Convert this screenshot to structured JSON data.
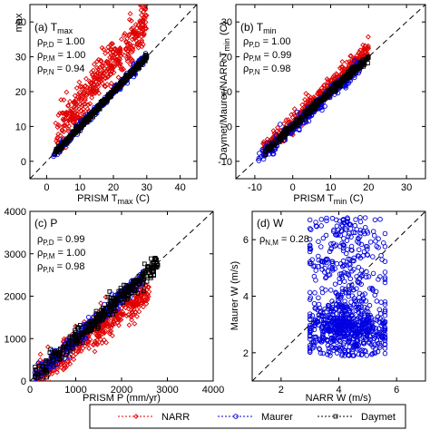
{
  "legend": {
    "items": [
      {
        "label": "NARR",
        "color": "#e00000",
        "marker": "diamond"
      },
      {
        "label": "Maurer",
        "color": "#0000e0",
        "marker": "circle"
      },
      {
        "label": "Daymet",
        "color": "#000000",
        "marker": "square"
      }
    ]
  },
  "chart_data": [
    {
      "type": "scatter",
      "panel_label": "(a) T",
      "panel_sub": "max",
      "xlabel": "PRISM T",
      "xlabel_sub": "max",
      "xlabel_unit": " (C)",
      "ylabel_visible": "max",
      "xlim": [
        -5,
        45
      ],
      "ylim": [
        -5,
        45
      ],
      "xticks": [
        0,
        10,
        20,
        30,
        40
      ],
      "yticks": [
        0,
        10,
        20,
        30,
        40
      ],
      "rho": [
        {
          "label": "ρ",
          "sub": "P,D",
          "value": " = 1.00"
        },
        {
          "label": "ρ",
          "sub": "P,M",
          "value": " = 1.00"
        },
        {
          "label": "ρ",
          "sub": "P,N",
          "value": " = 0.94"
        }
      ],
      "series": [
        {
          "name": "NARR",
          "pattern": "cloud",
          "x_range": [
            2,
            30
          ],
          "slope": 1.2,
          "intercept": 4.5,
          "spread": 3.0
        },
        {
          "name": "Maurer",
          "pattern": "line",
          "x_range": [
            2,
            30
          ],
          "slope": 1.0,
          "intercept": 0.0,
          "spread": 0.6
        },
        {
          "name": "Daymet",
          "pattern": "line",
          "x_range": [
            2,
            30
          ],
          "slope": 1.0,
          "intercept": 0.0,
          "spread": 0.4
        }
      ]
    },
    {
      "type": "scatter",
      "panel_label": "(b) T",
      "panel_sub": "min",
      "xlabel": "PRISM T",
      "xlabel_sub": "min",
      "xlabel_unit": " (C)",
      "ylabel": "Daymet/Maurer/NARR T",
      "ylabel_sub": "min",
      "ylabel_unit": " (C)",
      "xlim": [
        -15,
        35
      ],
      "ylim": [
        -15,
        35
      ],
      "xticks": [
        -10,
        0,
        10,
        20,
        30
      ],
      "yticks": [
        -10,
        0,
        10,
        20,
        30
      ],
      "rho": [
        {
          "label": "ρ",
          "sub": "P,D",
          "value": " = 1.00"
        },
        {
          "label": "ρ",
          "sub": "P,M",
          "value": " = 0.99"
        },
        {
          "label": "ρ",
          "sub": "P,N",
          "value": " = 0.98"
        }
      ],
      "series": [
        {
          "name": "NARR",
          "pattern": "cloud",
          "x_range": [
            -8,
            20
          ],
          "slope": 1.05,
          "intercept": 1.0,
          "spread": 1.3
        },
        {
          "name": "Maurer",
          "pattern": "line",
          "x_range": [
            -9,
            18
          ],
          "slope": 1.0,
          "intercept": -0.3,
          "spread": 1.0
        },
        {
          "name": "Daymet",
          "pattern": "line",
          "x_range": [
            -8,
            20
          ],
          "slope": 1.0,
          "intercept": 0.0,
          "spread": 0.5
        }
      ]
    },
    {
      "type": "scatter",
      "panel_label": "(c) P",
      "xlabel": "PRISM P (mm/yr)",
      "ylabel": "",
      "xlim": [
        0,
        4000
      ],
      "ylim": [
        0,
        4000
      ],
      "xticks": [
        0,
        1000,
        2000,
        3000,
        4000
      ],
      "yticks": [
        0,
        1000,
        2000,
        3000,
        4000
      ],
      "rho": [
        {
          "label": "ρ",
          "sub": "P,D",
          "value": " = 0.99"
        },
        {
          "label": "ρ",
          "sub": "P,M",
          "value": " = 1.00"
        },
        {
          "label": "ρ",
          "sub": "P,N",
          "value": " = 0.98"
        }
      ],
      "series": [
        {
          "name": "NARR",
          "pattern": "cloud",
          "x_range": [
            100,
            2600
          ],
          "slope": 0.82,
          "intercept": 0,
          "spread": 180
        },
        {
          "name": "Maurer",
          "pattern": "line",
          "x_range": [
            100,
            2500
          ],
          "slope": 1.0,
          "intercept": 0,
          "spread": 90
        },
        {
          "name": "Daymet",
          "pattern": "line",
          "x_range": [
            100,
            2800
          ],
          "slope": 1.0,
          "intercept": 0,
          "spread": 110
        }
      ]
    },
    {
      "type": "scatter",
      "panel_label": "(d) W",
      "xlabel": "NARR W (m/s)",
      "ylabel": "Maurer W (m/s)",
      "xlim": [
        1,
        7
      ],
      "ylim": [
        1,
        7
      ],
      "xticks": [
        2,
        4,
        6
      ],
      "yticks": [
        2,
        4,
        6
      ],
      "rho": [
        {
          "label": "ρ",
          "sub": "N,M",
          "value": " = 0.28"
        }
      ],
      "series": [
        {
          "name": "Maurer",
          "pattern": "blob",
          "x_range": [
            3.0,
            5.6
          ],
          "y_range": [
            1.9,
            6.8
          ]
        }
      ]
    }
  ]
}
